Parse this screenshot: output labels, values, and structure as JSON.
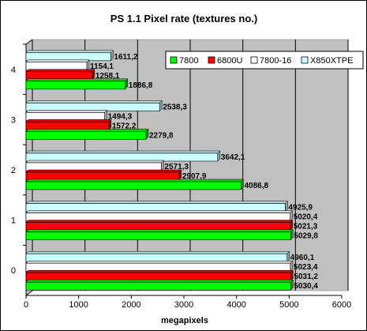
{
  "chart_data": {
    "type": "bar",
    "orientation": "horizontal",
    "title": "PS 1.1 Pixel rate (textures no.)",
    "xlabel": "megapixels",
    "ylabel": "",
    "xlim": [
      0,
      6000
    ],
    "xticks": [
      0,
      1000,
      2000,
      3000,
      4000,
      5000,
      6000
    ],
    "categories": [
      "0",
      "1",
      "2",
      "3",
      "4"
    ],
    "series": [
      {
        "name": "7800",
        "color": "#00ff00",
        "values": [
          5030.4,
          5029.8,
          4086.8,
          2279.8,
          1886.8
        ],
        "labels": [
          "5030,4",
          "5029,8",
          "4086,8",
          "2279,8",
          "1886,8"
        ]
      },
      {
        "name": "6800U",
        "color": "#ff0000",
        "values": [
          5031.2,
          5021.3,
          2907.9,
          1572.2,
          1258.1
        ],
        "labels": [
          "5031,2",
          "5021,3",
          "2907,9",
          "1572,2",
          "1258,1"
        ]
      },
      {
        "name": "7800-16",
        "color": "#ffffff",
        "values": [
          5023.4,
          5020.4,
          2571.3,
          1494.3,
          1154.1
        ],
        "labels": [
          "5023,4",
          "5020,4",
          "2571,3",
          "1494,3",
          "1154,1"
        ]
      },
      {
        "name": "X850XTPE",
        "color": "#ccffff",
        "values": [
          4960.1,
          4925.9,
          3642.1,
          2538.3,
          1611.2
        ],
        "labels": [
          "4960,1",
          "4925,9",
          "3642,1",
          "2538,3",
          "1611,2"
        ]
      }
    ],
    "grid": "vertical",
    "legend_position": "top-right"
  }
}
